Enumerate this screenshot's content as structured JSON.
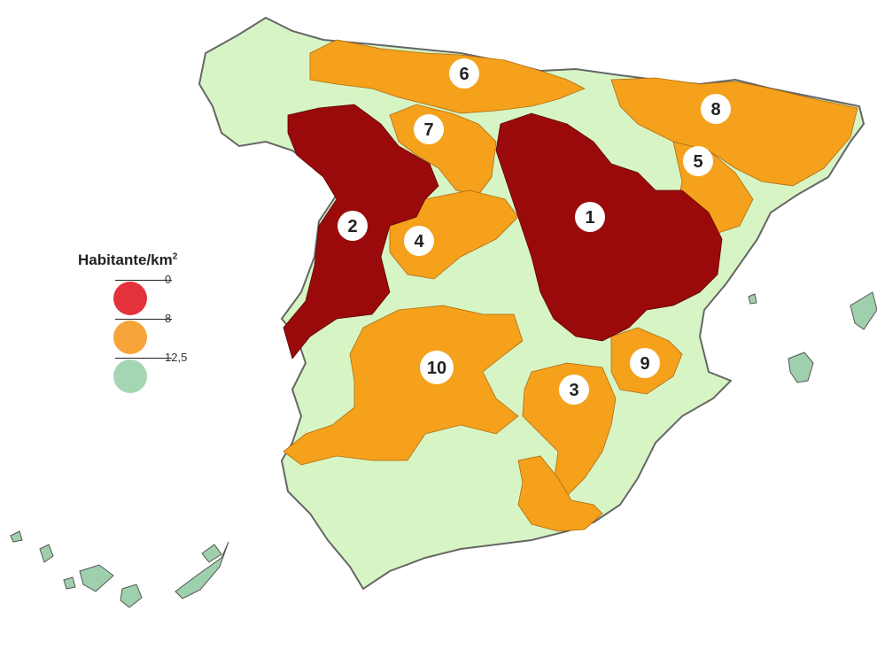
{
  "legend": {
    "title": "Habitante/km",
    "title_sup": "2",
    "breaks": [
      {
        "label": "0",
        "color": "#e3323c"
      },
      {
        "label": "8",
        "color": "#f7a43a"
      },
      {
        "label": "12,5",
        "color": "#a5d6b3"
      }
    ]
  },
  "colors": {
    "low_density": "#9b0a0a",
    "medium_density": "#f5a11c",
    "high_density": "#d7f5c4",
    "islands": "#9fd0ad",
    "border": "#666666"
  },
  "zones": [
    {
      "label": "1"
    },
    {
      "label": "2"
    },
    {
      "label": "3"
    },
    {
      "label": "4"
    },
    {
      "label": "5"
    },
    {
      "label": "6"
    },
    {
      "label": "7"
    },
    {
      "label": "8"
    },
    {
      "label": "9"
    },
    {
      "label": "10"
    }
  ]
}
